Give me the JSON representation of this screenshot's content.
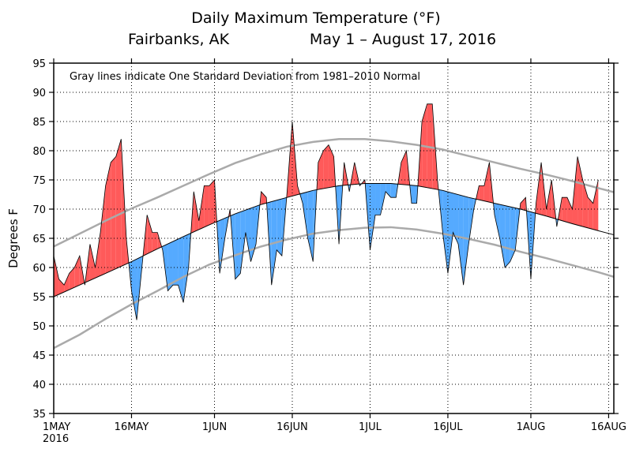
{
  "chart_data": {
    "type": "area",
    "title": "Daily Maximum Temperature (°F)",
    "location": "Fairbanks, AK",
    "date_range": "May 1 – August 17, 2016",
    "ylabel": "Degrees F",
    "xlabel": "",
    "ylim": [
      35,
      95
    ],
    "y_ticks": [
      35,
      40,
      45,
      50,
      55,
      60,
      65,
      70,
      75,
      80,
      85,
      90,
      95
    ],
    "x_ticks": [
      {
        "day": 0,
        "label": "1MAY",
        "sublabel": "2016"
      },
      {
        "day": 15,
        "label": "16MAY"
      },
      {
        "day": 31,
        "label": "1JUN"
      },
      {
        "day": 46,
        "label": "16JUN"
      },
      {
        "day": 61,
        "label": "1JUL"
      },
      {
        "day": 76,
        "label": "16JUL"
      },
      {
        "day": 92,
        "label": "1AUG"
      },
      {
        "day": 107,
        "label": "16AUG"
      }
    ],
    "x_range": [
      0,
      108
    ],
    "grid": true,
    "annotation": "Gray lines indicate One Standard Deviation from 1981–2010 Normal",
    "colors": {
      "above": "#ff5a5a",
      "below": "#55aaff",
      "normal": "#000000",
      "std": "#aaaaaa"
    },
    "normal_curve": [
      [
        0,
        55
      ],
      [
        5,
        57
      ],
      [
        10,
        59
      ],
      [
        15,
        61
      ],
      [
        20,
        63.2
      ],
      [
        25,
        65.3
      ],
      [
        30,
        67.3
      ],
      [
        35,
        69.2
      ],
      [
        40,
        70.8
      ],
      [
        45,
        72
      ],
      [
        50,
        73.2
      ],
      [
        55,
        74
      ],
      [
        60,
        74.4
      ],
      [
        65,
        74.4
      ],
      [
        70,
        74
      ],
      [
        75,
        73.2
      ],
      [
        80,
        72
      ],
      [
        85,
        71
      ],
      [
        90,
        70
      ],
      [
        95,
        68.8
      ],
      [
        100,
        67.5
      ],
      [
        105,
        66.3
      ],
      [
        108,
        65.6
      ]
    ],
    "upper_std_curve": [
      [
        0,
        63.6
      ],
      [
        5,
        65.8
      ],
      [
        10,
        68
      ],
      [
        15,
        70.1
      ],
      [
        20,
        72
      ],
      [
        25,
        74
      ],
      [
        30,
        76
      ],
      [
        35,
        77.9
      ],
      [
        40,
        79.4
      ],
      [
        45,
        80.7
      ],
      [
        50,
        81.5
      ],
      [
        55,
        82
      ],
      [
        60,
        82
      ],
      [
        65,
        81.6
      ],
      [
        70,
        81
      ],
      [
        75,
        80.2
      ],
      [
        80,
        79.1
      ],
      [
        85,
        78
      ],
      [
        90,
        76.9
      ],
      [
        95,
        75.9
      ],
      [
        100,
        74.8
      ],
      [
        105,
        73.6
      ],
      [
        108,
        72.9
      ]
    ],
    "lower_std_curve": [
      [
        0,
        46.2
      ],
      [
        5,
        48.5
      ],
      [
        10,
        51.2
      ],
      [
        15,
        53.7
      ],
      [
        20,
        56
      ],
      [
        25,
        58.4
      ],
      [
        30,
        60.5
      ],
      [
        35,
        62.1
      ],
      [
        40,
        63.6
      ],
      [
        45,
        64.8
      ],
      [
        50,
        65.8
      ],
      [
        55,
        66.4
      ],
      [
        60,
        66.8
      ],
      [
        65,
        66.9
      ],
      [
        70,
        66.5
      ],
      [
        75,
        65.8
      ],
      [
        80,
        64.9
      ],
      [
        85,
        63.9
      ],
      [
        90,
        62.7
      ],
      [
        95,
        61.6
      ],
      [
        100,
        60.4
      ],
      [
        105,
        59.2
      ],
      [
        108,
        58.4
      ]
    ],
    "daily_max": [
      62,
      58,
      57,
      59,
      60,
      62,
      57,
      64,
      60,
      66,
      74,
      78,
      79,
      82,
      65,
      56,
      51,
      60,
      69,
      66,
      66,
      63,
      56,
      57,
      57,
      54,
      60,
      73,
      68,
      74,
      74,
      75,
      59,
      65,
      70,
      58,
      59,
      66,
      61,
      64,
      73,
      72,
      57,
      63,
      62,
      73,
      85,
      74,
      71,
      65,
      61,
      78,
      80,
      81,
      79,
      64,
      78,
      73,
      78,
      74,
      75,
      63,
      69,
      69,
      73,
      72,
      72,
      78,
      80,
      71,
      71,
      85,
      88,
      88,
      75,
      66,
      59,
      66,
      64,
      57,
      64,
      70,
      74,
      74,
      78,
      69,
      65,
      60,
      61,
      63,
      71,
      72,
      58,
      71,
      78,
      70,
      75,
      67,
      72,
      72,
      70,
      79,
      75,
      72,
      71,
      75
    ]
  }
}
